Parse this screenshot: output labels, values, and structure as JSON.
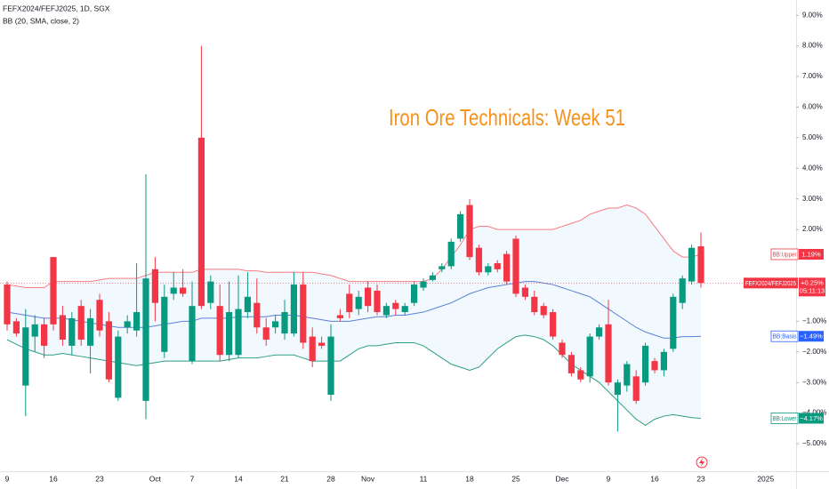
{
  "chart_data": {
    "type": "candlestick",
    "header": "FEFX2024/FEFJ2025, 1D, SGX",
    "indicator_header": "BB (20, SMA, close, 2)",
    "title": "Iron Ore Technicals: Week 51",
    "categories": [
      "9",
      null,
      null,
      null,
      null,
      "16",
      null,
      null,
      null,
      null,
      "23",
      null,
      null,
      null,
      null,
      null,
      "Oct",
      null,
      null,
      null,
      "7",
      null,
      null,
      null,
      null,
      "14",
      null,
      null,
      null,
      null,
      "21",
      null,
      null,
      null,
      null,
      "28",
      null,
      null,
      null,
      "Nov",
      null,
      null,
      null,
      null,
      null,
      "11",
      null,
      null,
      null,
      null,
      "18",
      null,
      null,
      null,
      null,
      "25",
      null,
      null,
      null,
      null,
      "Dec",
      null,
      null,
      null,
      null,
      "9",
      null,
      null,
      null,
      null,
      "16",
      null,
      null,
      null,
      null,
      "23"
    ],
    "future_x_label": "2025",
    "open": [
      0.2,
      -1.0,
      -3.1,
      -1.5,
      -1.1,
      1.1,
      -0.8,
      -1.8,
      -0.5,
      -1.8,
      -0.3,
      -1.0,
      -3.5,
      -1.2,
      -1.3,
      -3.6,
      0.7,
      -2.0,
      -0.1,
      0.1,
      -2.3,
      5.0,
      -0.4,
      -0.5,
      -2.1,
      -2.1,
      -0.7,
      -0.4,
      -1.2,
      -1.2,
      -1.4,
      -1.4,
      0.2,
      -1.5,
      -1.7,
      -3.4,
      -0.8,
      -0.1,
      -0.6,
      0.1,
      0.0,
      -0.8,
      -0.4,
      -0.7,
      -0.4,
      0.1,
      0.35,
      0.7,
      0.8,
      1.7,
      2.8,
      1.4,
      0.6,
      0.9,
      1.2,
      1.7,
      0.1,
      -0.2,
      -0.5,
      -0.7,
      -1.7,
      -2.1,
      -2.6,
      -2.8,
      -1.5,
      -1.1,
      -3.4,
      -3.1,
      -2.8,
      -3.0,
      -2.3,
      -2.6,
      -1.9,
      -0.4,
      0.3,
      1.45
    ],
    "high": [
      0.3,
      -0.9,
      -0.6,
      -0.8,
      -0.9,
      1.1,
      -0.5,
      -0.7,
      -0.3,
      -0.6,
      -0.1,
      -0.7,
      -1.3,
      -0.8,
      0.9,
      3.8,
      1.1,
      0.2,
      0.6,
      0.7,
      0.3,
      8.0,
      0.5,
      0.2,
      0.3,
      0.5,
      0.6,
      0.4,
      -0.9,
      -0.8,
      -0.3,
      0.6,
      0.6,
      -1.2,
      -1.5,
      -1.1,
      -0.6,
      0.2,
      0.0,
      0.3,
      0.2,
      -0.4,
      -0.3,
      -0.4,
      0.3,
      0.4,
      0.6,
      0.9,
      1.7,
      2.6,
      3.0,
      1.5,
      0.9,
      1.0,
      1.3,
      1.8,
      0.2,
      0.0,
      -0.4,
      -0.6,
      -1.6,
      -2.0,
      -2.5,
      -1.4,
      -1.1,
      -0.3,
      -2.9,
      -2.3,
      -2.6,
      -1.7,
      -2.2,
      -1.9,
      -0.1,
      0.5,
      1.5,
      1.9
    ],
    "low": [
      -1.3,
      -1.5,
      -4.1,
      -2.0,
      -2.2,
      -1.3,
      -1.8,
      -2.1,
      -1.8,
      -2.7,
      -1.5,
      -3.0,
      -3.6,
      -1.4,
      -1.5,
      -4.2,
      -1.0,
      -2.2,
      -0.3,
      -0.2,
      -2.4,
      -0.6,
      -0.6,
      -2.3,
      -2.3,
      -2.2,
      -0.9,
      -1.4,
      -1.8,
      -1.4,
      -1.6,
      -1.5,
      -1.9,
      -2.5,
      -1.9,
      -3.6,
      -1.0,
      -0.9,
      -0.8,
      -0.7,
      -0.8,
      -0.9,
      -0.8,
      -0.8,
      -0.5,
      0.0,
      0.3,
      0.6,
      0.7,
      1.6,
      1.0,
      0.5,
      0.5,
      0.6,
      0.2,
      -0.2,
      -0.3,
      -0.8,
      -0.9,
      -1.6,
      -2.2,
      -2.8,
      -3.0,
      -3.0,
      -1.6,
      -3.1,
      -4.6,
      -3.3,
      -3.7,
      -3.1,
      -2.7,
      -2.8,
      -2.0,
      -0.6,
      0.2,
      0.1
    ],
    "close": [
      -1.1,
      -1.4,
      -1.2,
      -1.1,
      -1.8,
      -1.1,
      -1.6,
      -0.9,
      -1.6,
      -0.9,
      -1.3,
      -2.9,
      -1.5,
      -1.0,
      -0.7,
      0.4,
      -0.4,
      -0.2,
      0.1,
      -0.1,
      -0.5,
      -0.5,
      0.3,
      -2.1,
      -0.7,
      -0.6,
      -0.2,
      -1.2,
      -1.6,
      -1.0,
      -0.7,
      0.2,
      -1.7,
      -2.3,
      -1.8,
      -1.5,
      -0.9,
      -0.7,
      -0.2,
      -0.5,
      -0.7,
      -0.5,
      -0.6,
      -0.5,
      0.2,
      0.3,
      0.5,
      0.8,
      1.6,
      2.5,
      1.1,
      0.6,
      0.8,
      0.7,
      0.3,
      -0.1,
      -0.2,
      -0.7,
      -0.8,
      -1.5,
      -2.1,
      -2.7,
      -2.9,
      -1.5,
      -1.2,
      -3.0,
      -3.0,
      -2.4,
      -3.6,
      -1.8,
      -2.6,
      -2.0,
      -0.2,
      0.4,
      1.4,
      0.25
    ],
    "up_color": "#089981",
    "down_color": "#f23645",
    "indicators": [
      {
        "name": "BB:Upper",
        "color": "#f77c80",
        "last_value_label": "1.19%",
        "values": [
          0.2,
          0.15,
          0.1,
          0.1,
          0.1,
          0.3,
          0.3,
          0.3,
          0.3,
          0.3,
          0.35,
          0.4,
          0.4,
          0.4,
          0.4,
          0.5,
          0.6,
          0.6,
          0.6,
          0.6,
          0.6,
          0.7,
          0.7,
          0.7,
          0.7,
          0.7,
          0.65,
          0.65,
          0.6,
          0.6,
          0.6,
          0.6,
          0.6,
          0.6,
          0.55,
          0.5,
          0.4,
          0.3,
          0.3,
          0.3,
          0.3,
          0.3,
          0.3,
          0.3,
          0.3,
          0.3,
          0.4,
          0.7,
          1.1,
          1.5,
          2.0,
          2.1,
          2.1,
          2.0,
          2.0,
          2.0,
          2.0,
          2.0,
          2.0,
          2.0,
          2.1,
          2.2,
          2.3,
          2.5,
          2.6,
          2.7,
          2.7,
          2.8,
          2.7,
          2.5,
          2.1,
          1.7,
          1.3,
          1.1,
          1.1,
          1.19
        ]
      },
      {
        "name": "BB:Basis",
        "color": "#5b7fd8",
        "last_value_label": "−1.49%",
        "values": [
          -0.7,
          -0.75,
          -0.8,
          -0.85,
          -0.9,
          -0.9,
          -0.9,
          -0.95,
          -1.0,
          -1.05,
          -1.1,
          -1.15,
          -1.2,
          -1.2,
          -1.2,
          -1.2,
          -1.15,
          -1.1,
          -1.05,
          -1.0,
          -1.0,
          -0.9,
          -0.9,
          -0.9,
          -0.9,
          -0.85,
          -0.85,
          -0.85,
          -0.85,
          -0.8,
          -0.8,
          -0.8,
          -0.85,
          -0.9,
          -0.95,
          -1.0,
          -1.0,
          -1.0,
          -0.95,
          -0.9,
          -0.85,
          -0.85,
          -0.8,
          -0.8,
          -0.75,
          -0.7,
          -0.6,
          -0.5,
          -0.4,
          -0.25,
          -0.1,
          0.0,
          0.1,
          0.15,
          0.2,
          0.25,
          0.3,
          0.3,
          0.25,
          0.2,
          0.1,
          0.0,
          -0.1,
          -0.2,
          -0.4,
          -0.6,
          -0.8,
          -1.0,
          -1.2,
          -1.35,
          -1.45,
          -1.55,
          -1.55,
          -1.5,
          -1.5,
          -1.49
        ]
      },
      {
        "name": "BB:Lower",
        "color": "#2e9e85",
        "last_value_label": "−4.17%",
        "values": [
          -1.6,
          -1.75,
          -1.9,
          -2.0,
          -2.1,
          -2.1,
          -2.05,
          -2.1,
          -2.15,
          -2.2,
          -2.25,
          -2.3,
          -2.35,
          -2.4,
          -2.45,
          -2.4,
          -2.35,
          -2.3,
          -2.3,
          -2.3,
          -2.3,
          -2.3,
          -2.3,
          -2.3,
          -2.25,
          -2.2,
          -2.2,
          -2.2,
          -2.15,
          -2.1,
          -2.1,
          -2.1,
          -2.2,
          -2.3,
          -2.3,
          -2.3,
          -2.3,
          -2.1,
          -1.9,
          -1.8,
          -1.8,
          -1.75,
          -1.7,
          -1.7,
          -1.7,
          -1.8,
          -2.0,
          -2.2,
          -2.4,
          -2.5,
          -2.6,
          -2.5,
          -2.2,
          -1.9,
          -1.7,
          -1.5,
          -1.45,
          -1.5,
          -1.6,
          -1.8,
          -2.1,
          -2.4,
          -2.6,
          -2.8,
          -3.0,
          -3.3,
          -3.6,
          -3.9,
          -4.2,
          -4.4,
          -4.2,
          -4.1,
          -4.05,
          -4.1,
          -4.15,
          -4.17
        ]
      }
    ],
    "price_tag": {
      "name": "FEFX2024/FEFJ2025",
      "value_label": "+0.25%",
      "countdown": "05:11:13"
    },
    "ylim": [
      -5.9,
      9.5
    ],
    "yticks": [
      {
        "value": 9,
        "label": "9.00%"
      },
      {
        "value": 8,
        "label": "8.00%"
      },
      {
        "value": 7,
        "label": "7.00%"
      },
      {
        "value": 6,
        "label": "6.00%"
      },
      {
        "value": 5,
        "label": "5.00%"
      },
      {
        "value": 4,
        "label": "4.00%"
      },
      {
        "value": 3,
        "label": "3.00%"
      },
      {
        "value": 2,
        "label": "2.00%"
      },
      {
        "value": -1,
        "label": "−1.00%"
      },
      {
        "value": -2,
        "label": "−2.00%"
      },
      {
        "value": -3,
        "label": "−3.00%"
      },
      {
        "value": -4,
        "label": "−4.00%"
      },
      {
        "value": -5,
        "label": "−5.00%"
      }
    ],
    "grid": false
  }
}
